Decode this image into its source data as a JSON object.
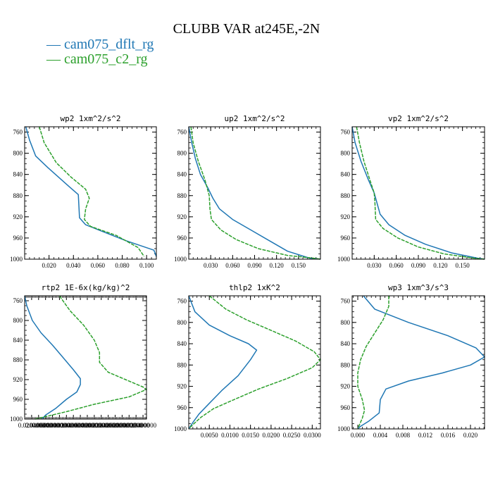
{
  "figure": {
    "title": "CLUBB VAR at245E,-2N",
    "legend": [
      {
        "label": "cam075_dflt_rg",
        "color": "#1f77b4",
        "marker": "—"
      },
      {
        "label": "cam075_c2_rg",
        "color": "#2ca02c",
        "marker": "—"
      }
    ]
  },
  "colors": {
    "series1": "#1f77b4",
    "series2": "#2ca02c"
  },
  "chart_data": [
    {
      "type": "line",
      "title": "wp2  1xm^2/s^2",
      "xlim": [
        0,
        0.108
      ],
      "ylim": [
        1000,
        750
      ],
      "yinvert": true,
      "xticks": [
        0.02,
        0.04,
        0.06,
        0.08,
        0.1
      ],
      "xticklabels": [
        "0.020",
        "0.040",
        "0.060",
        "0.080",
        "0.100"
      ],
      "yticks": [
        760,
        800,
        840,
        880,
        920,
        960,
        1000
      ],
      "series": [
        {
          "name": "cam075_dflt_rg",
          "x": [
            0.001,
            0.004,
            0.009,
            0.019,
            0.036,
            0.044,
            0.045,
            0.05,
            0.062,
            0.083,
            0.106,
            0.108
          ],
          "y": [
            750,
            775,
            805,
            827,
            862,
            878,
            922,
            935,
            946,
            965,
            983,
            995
          ]
        },
        {
          "name": "cam075_c2_rg",
          "x": [
            0.012,
            0.016,
            0.026,
            0.038,
            0.05,
            0.053,
            0.05,
            0.049,
            0.054,
            0.075,
            0.093,
            0.098
          ],
          "y": [
            750,
            780,
            818,
            845,
            868,
            885,
            905,
            925,
            938,
            955,
            978,
            995
          ]
        }
      ]
    },
    {
      "type": "line",
      "title": "up2  1xm^2/s^2",
      "xlim": [
        0,
        0.18
      ],
      "ylim": [
        1000,
        750
      ],
      "yinvert": true,
      "xticks": [
        0.03,
        0.06,
        0.09,
        0.12,
        0.15
      ],
      "xticklabels": [
        "0.030",
        "0.060",
        "0.090",
        "0.120",
        "0.150"
      ],
      "yticks": [
        760,
        800,
        840,
        880,
        920,
        960,
        1000
      ],
      "series": [
        {
          "name": "cam075_dflt_rg",
          "x": [
            0.0,
            0.004,
            0.009,
            0.016,
            0.026,
            0.033,
            0.042,
            0.06,
            0.085,
            0.11,
            0.135,
            0.165,
            0.18
          ],
          "y": [
            750,
            780,
            810,
            840,
            865,
            885,
            905,
            925,
            945,
            965,
            985,
            998,
            1000
          ]
        },
        {
          "name": "cam075_c2_rg",
          "x": [
            0.003,
            0.006,
            0.013,
            0.022,
            0.028,
            0.029,
            0.031,
            0.044,
            0.065,
            0.095,
            0.135,
            0.17,
            0.18
          ],
          "y": [
            750,
            780,
            815,
            850,
            880,
            905,
            925,
            945,
            963,
            980,
            993,
            998,
            1000
          ]
        }
      ]
    },
    {
      "type": "line",
      "title": "vp2  1xm^2/s^2",
      "xlim": [
        0,
        0.18
      ],
      "ylim": [
        1000,
        750
      ],
      "yinvert": true,
      "xticks": [
        0.03,
        0.06,
        0.09,
        0.12,
        0.15
      ],
      "xticklabels": [
        "0.030",
        "0.060",
        "0.090",
        "0.120",
        "0.150"
      ],
      "yticks": [
        760,
        800,
        840,
        880,
        920,
        960,
        1000
      ],
      "series": [
        {
          "name": "cam075_dflt_rg",
          "x": [
            0.0,
            0.004,
            0.012,
            0.022,
            0.03,
            0.034,
            0.038,
            0.05,
            0.072,
            0.1,
            0.135,
            0.17,
            0.18
          ],
          "y": [
            750,
            780,
            815,
            850,
            875,
            895,
            915,
            935,
            955,
            972,
            988,
            998,
            1000
          ]
        },
        {
          "name": "cam075_c2_rg",
          "x": [
            0.006,
            0.01,
            0.016,
            0.024,
            0.03,
            0.031,
            0.032,
            0.042,
            0.062,
            0.09,
            0.125,
            0.165,
            0.18
          ],
          "y": [
            750,
            780,
            815,
            850,
            875,
            895,
            925,
            942,
            960,
            977,
            990,
            998,
            1000
          ]
        }
      ]
    },
    {
      "type": "line",
      "title": "rtp2  1E-6x(kg/kg)^2",
      "xlim": [
        0,
        0.35
      ],
      "ylim": [
        1000,
        750
      ],
      "yinvert": true,
      "xticks": [
        0.02,
        0.04,
        0.06,
        0.08,
        0.1,
        0.12,
        0.14,
        0.16,
        0.18,
        0.2,
        0.22,
        0.24,
        0.26,
        0.28,
        0.3,
        0.32,
        0.34
      ],
      "xticklabels": [
        "0.0200000",
        "0.0400000",
        "0.0600000",
        "0.0800000",
        "0.1000000",
        "0.1200000",
        "0.1400000",
        "0.1600000",
        "0.1800000",
        "0.2000000",
        "0.2200000",
        "0.2400000",
        "0.2600000",
        "0.2800000",
        "0.3000000",
        "0.3200000",
        "0.3400000"
      ],
      "yticks": [
        760,
        800,
        840,
        880,
        920,
        960,
        1000
      ],
      "series": [
        {
          "name": "cam075_dflt_rg",
          "x": [
            0.0,
            0.006,
            0.022,
            0.047,
            0.08,
            0.11,
            0.14,
            0.16,
            0.16,
            0.15,
            0.12,
            0.09,
            0.06,
            0.05
          ],
          "y": [
            750,
            770,
            800,
            825,
            850,
            875,
            900,
            918,
            930,
            945,
            960,
            978,
            992,
            1000
          ]
        },
        {
          "name": "cam075_c2_rg",
          "x": [
            0.1,
            0.13,
            0.17,
            0.2,
            0.215,
            0.215,
            0.24,
            0.29,
            0.34,
            0.35,
            0.3,
            0.2,
            0.12,
            0.06,
            0.03
          ],
          "y": [
            750,
            780,
            810,
            840,
            865,
            885,
            905,
            920,
            935,
            940,
            955,
            970,
            985,
            995,
            1000
          ]
        }
      ]
    },
    {
      "type": "line",
      "title": "thlp2  1xK^2",
      "xlim": [
        0,
        0.032
      ],
      "ylim": [
        1000,
        750
      ],
      "yinvert": true,
      "xticks": [
        0.005,
        0.01,
        0.015,
        0.02,
        0.025,
        0.03
      ],
      "xticklabels": [
        "0.0050",
        "0.0100",
        "0.0150",
        "0.0200",
        "0.0250",
        "0.0300"
      ],
      "yticks": [
        760,
        800,
        840,
        880,
        920,
        960,
        1000
      ],
      "series": [
        {
          "name": "cam075_dflt_rg",
          "x": [
            0.0,
            0.0015,
            0.005,
            0.01,
            0.0145,
            0.0165,
            0.015,
            0.012,
            0.008,
            0.005,
            0.0025,
            0.001,
            0.0
          ],
          "y": [
            750,
            780,
            805,
            825,
            840,
            852,
            870,
            900,
            928,
            952,
            972,
            988,
            1000
          ]
        },
        {
          "name": "cam075_c2_rg",
          "x": [
            0.005,
            0.009,
            0.014,
            0.02,
            0.026,
            0.0305,
            0.032,
            0.03,
            0.024,
            0.017,
            0.011,
            0.006,
            0.003,
            0.001,
            0.0
          ],
          "y": [
            750,
            775,
            795,
            815,
            835,
            855,
            870,
            885,
            905,
            925,
            945,
            962,
            978,
            992,
            1000
          ]
        }
      ]
    },
    {
      "type": "line",
      "title": "wp3  1xm^3/s^3",
      "xlim": [
        -0.001,
        0.0225
      ],
      "ylim": [
        1000,
        750
      ],
      "yinvert": true,
      "xticks": [
        0.0,
        0.004,
        0.008,
        0.012,
        0.016,
        0.02
      ],
      "xticklabels": [
        "0.000",
        "0.004",
        "0.008",
        "0.012",
        "0.016",
        "0.020"
      ],
      "yticks": [
        760,
        800,
        840,
        880,
        920,
        960,
        1000
      ],
      "series": [
        {
          "name": "cam075_dflt_rg",
          "x": [
            0.001,
            0.003,
            0.009,
            0.016,
            0.021,
            0.0225,
            0.02,
            0.015,
            0.009,
            0.005,
            0.004,
            0.0038,
            0.002,
            0.0005,
            0.0
          ],
          "y": [
            750,
            775,
            800,
            825,
            848,
            865,
            880,
            895,
            910,
            925,
            945,
            970,
            985,
            995,
            1000
          ]
        },
        {
          "name": "cam075_c2_rg",
          "x": [
            0.0055,
            0.0055,
            0.0045,
            0.003,
            0.0015,
            0.0005,
            0.0,
            0.0,
            0.0008,
            0.0012,
            0.0008,
            0.0003,
            0.0
          ],
          "y": [
            750,
            770,
            795,
            820,
            845,
            870,
            895,
            920,
            945,
            965,
            980,
            992,
            1000
          ]
        }
      ]
    }
  ]
}
